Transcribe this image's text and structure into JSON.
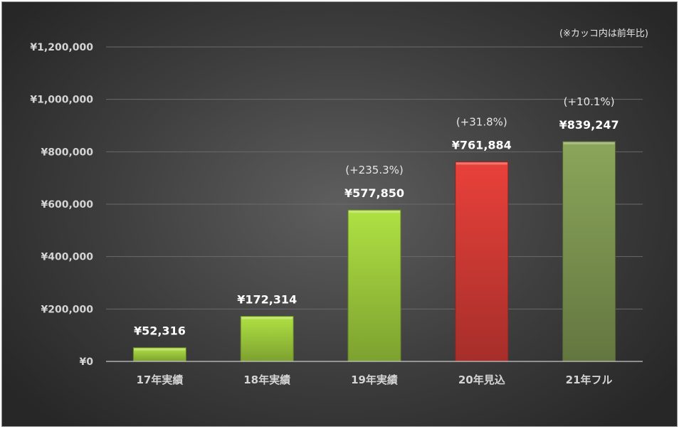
{
  "chart_data": {
    "type": "bar",
    "categories": [
      "17年実績",
      "18年実績",
      "19年実績",
      "20年見込",
      "21年フル"
    ],
    "values": [
      52316,
      172314,
      577850,
      761884,
      839247
    ],
    "value_labels": [
      "¥52,316",
      "¥172,314",
      "¥577,850",
      "¥761,884",
      "¥839,247"
    ],
    "change_labels": [
      "",
      "",
      "(+235.3%)",
      "(+31.8%)",
      "(+10.1%)"
    ],
    "bar_colors": [
      "#9cc93c",
      "#9cc93c",
      "#9cc93c",
      "#d03a34",
      "#7c9450"
    ],
    "ylim": [
      0,
      1200000
    ],
    "yticks": [
      0,
      200000,
      400000,
      600000,
      800000,
      1000000,
      1200000
    ],
    "ytick_labels": [
      "¥0",
      "¥200,000",
      "¥400,000",
      "¥600,000",
      "¥800,000",
      "¥1,000,000",
      "¥1,200,000"
    ],
    "note": "(※カッコ内は前年比)",
    "grid": true,
    "title": "",
    "xlabel": "",
    "ylabel": ""
  }
}
